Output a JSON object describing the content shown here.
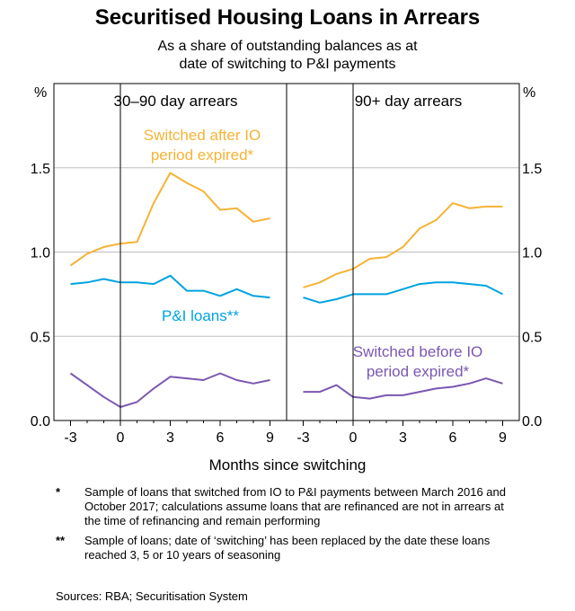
{
  "title": "Securitised Housing Loans in Arrears",
  "subtitle_lines": [
    "As a share of outstanding balances as at",
    "date of switching to P&I payments"
  ],
  "chart_data": {
    "type": "line",
    "xlabel": "Months since switching",
    "y_unit": "%",
    "ylim": [
      0,
      2.0
    ],
    "yticks": [
      0.0,
      0.5,
      1.0,
      1.5
    ],
    "ytick_labels": [
      "0.0",
      "0.5",
      "1.0",
      "1.5"
    ],
    "xlim": [
      -4,
      10
    ],
    "xticks": [
      -3,
      0,
      3,
      6,
      9
    ],
    "panels": [
      {
        "title": "30–90 day arrears",
        "series": [
          {
            "name": "Switched after IO period expired*",
            "color": "#F5B335",
            "x": [
              -3,
              -2,
              -1,
              0,
              1,
              2,
              3,
              4,
              5,
              6,
              7,
              8,
              9
            ],
            "y": [
              0.92,
              0.99,
              1.03,
              1.05,
              1.06,
              1.29,
              1.47,
              1.41,
              1.36,
              1.25,
              1.26,
              1.18,
              1.2
            ]
          },
          {
            "name": "P&I loans**",
            "color": "#00A3E0",
            "x": [
              -3,
              -2,
              -1,
              0,
              1,
              2,
              3,
              4,
              5,
              6,
              7,
              8,
              9
            ],
            "y": [
              0.81,
              0.82,
              0.84,
              0.82,
              0.82,
              0.81,
              0.86,
              0.77,
              0.77,
              0.74,
              0.78,
              0.74,
              0.73
            ]
          },
          {
            "name": "Switched before IO period expired*",
            "color": "#7B57B0",
            "x": [
              -3,
              -2,
              -1,
              0,
              1,
              2,
              3,
              4,
              5,
              6,
              7,
              8,
              9
            ],
            "y": [
              0.28,
              0.21,
              0.14,
              0.08,
              0.11,
              0.19,
              0.26,
              0.25,
              0.24,
              0.28,
              0.24,
              0.22,
              0.24
            ]
          }
        ],
        "annotations": [
          {
            "series": 0,
            "lines": [
              "Switched after IO",
              "period expired*"
            ]
          },
          {
            "series": 1,
            "lines": [
              "P&I loans**"
            ]
          }
        ]
      },
      {
        "title": "90+ day arrears",
        "series": [
          {
            "name": "Switched after IO period expired*",
            "color": "#F5B335",
            "x": [
              -3,
              -2,
              -1,
              0,
              1,
              2,
              3,
              4,
              5,
              6,
              7,
              8,
              9
            ],
            "y": [
              0.79,
              0.82,
              0.87,
              0.9,
              0.96,
              0.97,
              1.03,
              1.14,
              1.19,
              1.29,
              1.26,
              1.27,
              1.27
            ]
          },
          {
            "name": "P&I loans**",
            "color": "#00A3E0",
            "x": [
              -3,
              -2,
              -1,
              0,
              1,
              2,
              3,
              4,
              5,
              6,
              7,
              8,
              9
            ],
            "y": [
              0.73,
              0.7,
              0.72,
              0.75,
              0.75,
              0.75,
              0.78,
              0.81,
              0.82,
              0.82,
              0.81,
              0.8,
              0.75
            ]
          },
          {
            "name": "Switched before IO period expired*",
            "color": "#7B57B0",
            "x": [
              -3,
              -2,
              -1,
              0,
              1,
              2,
              3,
              4,
              5,
              6,
              7,
              8,
              9
            ],
            "y": [
              0.17,
              0.17,
              0.21,
              0.14,
              0.13,
              0.15,
              0.15,
              0.17,
              0.19,
              0.2,
              0.22,
              0.25,
              0.22
            ]
          }
        ],
        "annotations": [
          {
            "series": 2,
            "lines": [
              "Switched before IO",
              "period expired*"
            ]
          }
        ]
      }
    ]
  },
  "notes": [
    {
      "mark": "*",
      "text": "Sample of loans that switched from IO to P&I payments between March 2016 and October 2017; calculations assume loans that are refinanced are not in arrears at the time of refinancing and remain performing"
    },
    {
      "mark": "**",
      "text": "Sample of loans; date of ‘switching’ has been replaced by the date these loans reached 3, 5 or 10 years of seasoning"
    }
  ],
  "sources": "Sources: RBA; Securitisation System"
}
